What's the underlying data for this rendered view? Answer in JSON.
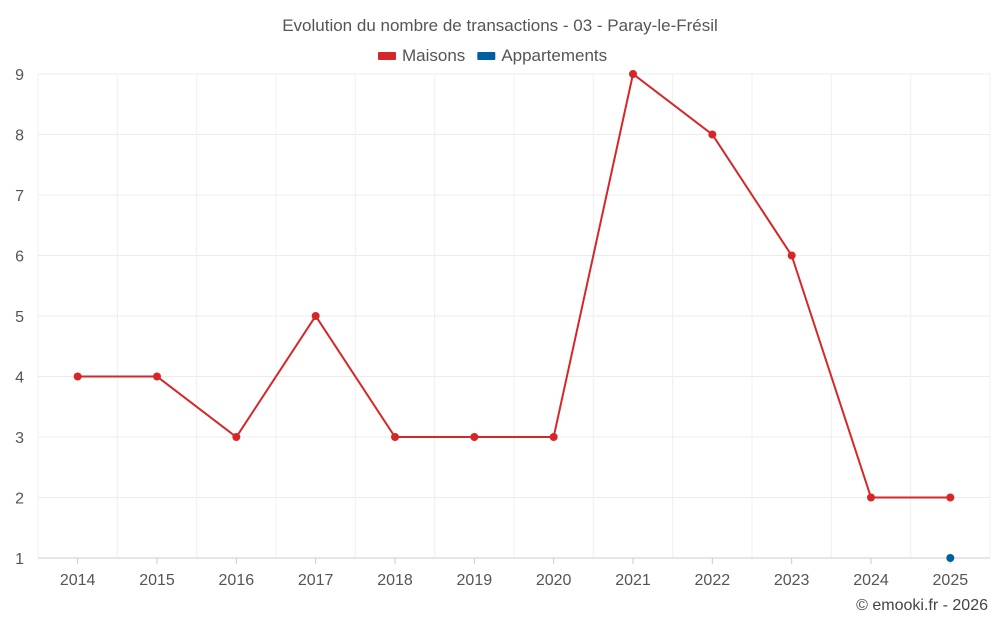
{
  "chart_data": {
    "type": "line",
    "title": "Evolution du nombre de transactions - 03 - Paray-le-Frésil",
    "xlabel": "",
    "ylabel": "",
    "categories": [
      "2014",
      "2015",
      "2016",
      "2017",
      "2018",
      "2019",
      "2020",
      "2021",
      "2022",
      "2023",
      "2024",
      "2025"
    ],
    "ylim": [
      1,
      9
    ],
    "yticks": [
      1,
      2,
      3,
      4,
      5,
      6,
      7,
      8,
      9
    ],
    "grid": true,
    "legend_position": "top",
    "series": [
      {
        "name": "Maisons",
        "color": "#d62728",
        "values": [
          4,
          4,
          3,
          5,
          3,
          3,
          3,
          9,
          8,
          6,
          2,
          2
        ]
      },
      {
        "name": "Appartements",
        "color": "#005f9e",
        "values": [
          null,
          null,
          null,
          null,
          null,
          null,
          null,
          null,
          null,
          null,
          null,
          1
        ]
      }
    ],
    "credit": "© emooki.fr - 2026"
  }
}
